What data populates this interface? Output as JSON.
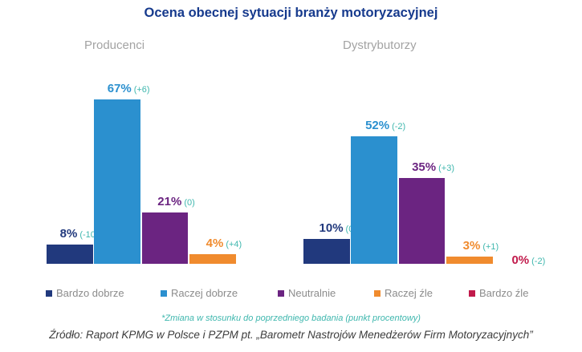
{
  "title": "Ocena obecnej sytuacji branży motoryzacyjnej",
  "footnote": "*Zmiana w stosunku do poprzedniego badania (punkt procentowy)",
  "source": "Źródło: Raport KPMG w Polsce i PZPM pt. „Barometr Nastrojów Menedżerów Firm Motoryzacyjnych”",
  "colors": {
    "title": "#163a8d",
    "group_label": "#a3a3a3",
    "teal": "#3fb7ae",
    "legend_text": "#8c8c8c",
    "source_text": "#3c3c3c",
    "background": "#ffffff"
  },
  "chart_data": {
    "type": "bar",
    "title": "Ocena obecnej sytuacji branży motoryzacyjnej",
    "categories": [
      "Bardzo dobrze",
      "Raczej dobrze",
      "Neutralnie",
      "Raczej źle",
      "Bardzo źle"
    ],
    "category_colors": [
      "#21397d",
      "#2b90cf",
      "#6b2481",
      "#f08b2e",
      "#c11a4b"
    ],
    "series": [
      {
        "name": "Producenci",
        "values": [
          8,
          67,
          21,
          4,
          null
        ],
        "value_labels": [
          "8%",
          "67%",
          "21%",
          "4%",
          null
        ],
        "changes": [
          "(-10)*",
          "(+6)",
          "(0)",
          "(+4)",
          null
        ]
      },
      {
        "name": "Dystrybutorzy",
        "values": [
          10,
          52,
          35,
          3,
          0
        ],
        "value_labels": [
          "10%",
          "52%",
          "35%",
          "3%",
          "0%"
        ],
        "changes": [
          "(0)",
          "(-2)",
          "(+3)",
          "(+1)",
          "(-2)"
        ]
      }
    ],
    "ylabel": "",
    "xlabel": "",
    "ylim": [
      0,
      100
    ],
    "grid": false,
    "axis_lines": false,
    "legend_position": "bottom",
    "annotation_note": "*Zmiana w stosunku do poprzedniego badania (punkt procentowy)"
  }
}
